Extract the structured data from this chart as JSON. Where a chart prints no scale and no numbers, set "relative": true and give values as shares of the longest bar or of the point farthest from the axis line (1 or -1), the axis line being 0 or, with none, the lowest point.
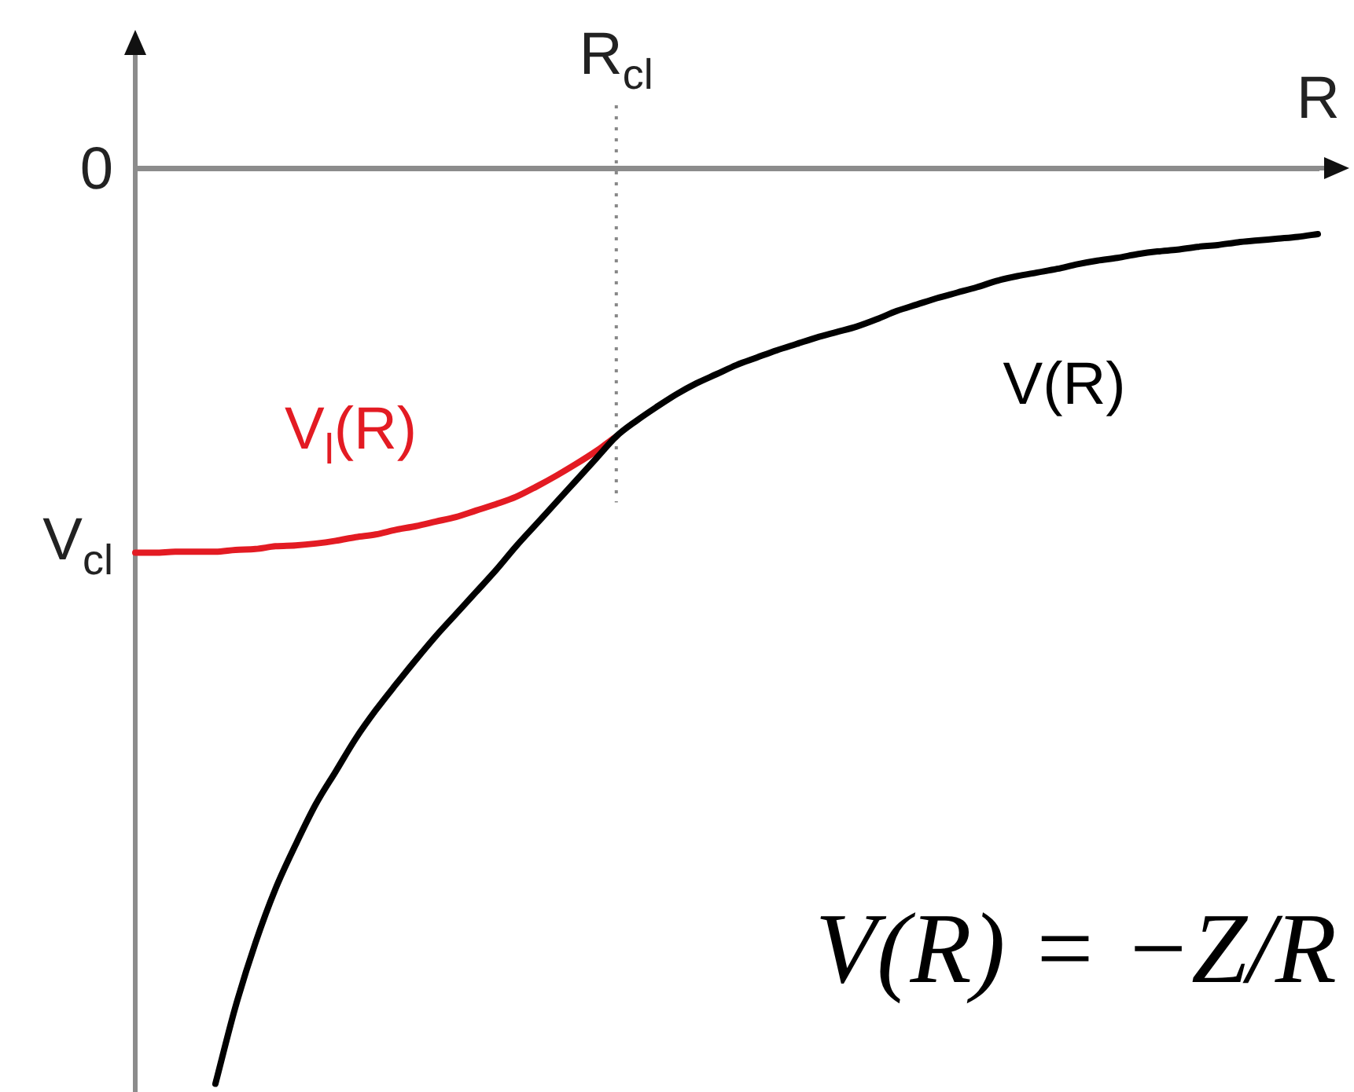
{
  "chart_data": {
    "type": "line",
    "relative": true,
    "xlabel": "R",
    "categories": [
      null,
      null,
      null,
      null,
      null,
      null,
      null,
      null,
      null,
      null,
      null,
      null,
      null,
      null,
      null,
      null,
      null,
      null,
      null,
      null,
      null,
      null,
      null,
      null,
      null,
      null,
      null,
      null,
      null,
      null,
      null,
      null,
      null,
      null,
      null,
      null,
      null,
      null,
      null,
      null,
      null,
      null,
      null,
      null,
      null,
      null,
      null,
      null,
      null,
      null,
      null,
      null,
      null,
      null,
      null,
      null,
      null,
      null,
      null,
      null
    ],
    "series": [
      {
        "name": "V(R)",
        "color": "#000000",
        "values": [
          null,
          null,
          null,
          null,
          -1,
          -0.916,
          -0.846,
          -0.787,
          -0.739,
          -0.695,
          -0.659,
          -0.623,
          -0.592,
          -0.564,
          -0.537,
          -0.511,
          -0.487,
          -0.463,
          -0.439,
          -0.413,
          -0.389,
          -0.365,
          -0.341,
          -0.317,
          -0.293,
          -0.276,
          -0.261,
          -0.247,
          -0.235,
          -0.225,
          -0.215,
          -0.207,
          -0.199,
          -0.192,
          -0.185,
          -0.179,
          -0.173,
          -0.165,
          -0.156,
          -0.149,
          -0.142,
          -0.136,
          -0.13,
          -0.123,
          -0.118,
          -0.114,
          -0.11,
          -0.105,
          -0.101,
          -0.098,
          -0.094,
          -0.091,
          -0.089,
          -0.086,
          -0.084,
          -0.081,
          -0.079,
          -0.077,
          -0.075,
          -0.072
        ]
      },
      {
        "name": "V$_{l}$(R)",
        "color": "#e31b23",
        "values": [
          -0.42,
          -0.42,
          -0.419,
          -0.419,
          -0.419,
          -0.417,
          -0.416,
          -0.413,
          -0.412,
          -0.41,
          -0.407,
          -0.403,
          -0.4,
          -0.395,
          -0.391,
          -0.386,
          -0.381,
          -0.374,
          -0.367,
          -0.359,
          -0.348,
          -0.336,
          -0.323,
          -0.309,
          -0.293,
          null,
          null,
          null,
          null,
          null,
          null,
          null,
          null,
          null,
          null,
          null,
          null,
          null,
          null,
          null,
          null,
          null,
          null,
          null,
          null,
          null,
          null,
          null,
          null,
          null,
          null,
          null,
          null,
          null,
          null,
          null,
          null,
          null,
          null,
          null
        ]
      }
    ],
    "annotations": [
      "0",
      "V$_{cl}$",
      "R$_{cl}$",
      "V(R) = −Z/R"
    ]
  }
}
